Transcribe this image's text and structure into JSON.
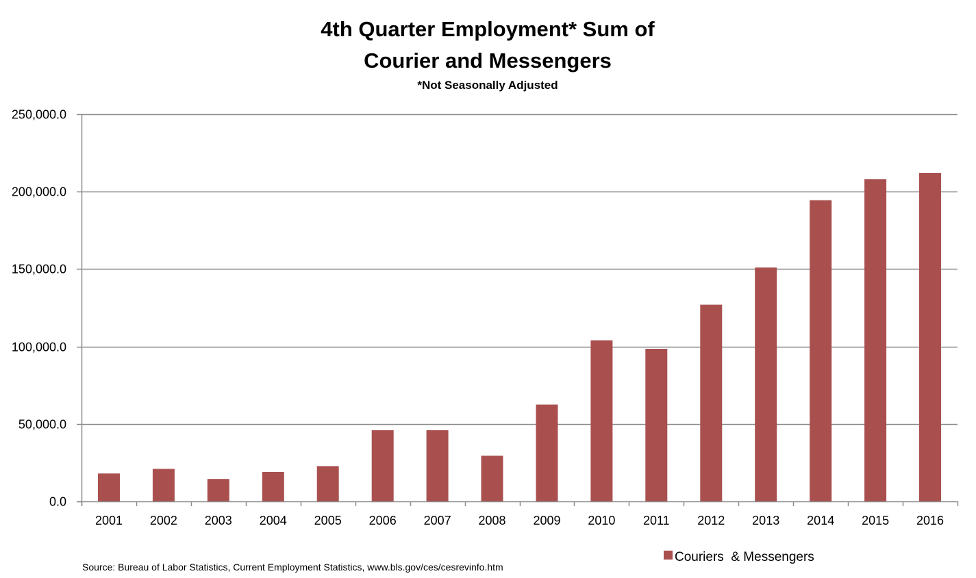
{
  "chart_data": {
    "type": "bar",
    "title_lines": [
      "4th Quarter Employment* Sum of",
      "Courier and Messengers"
    ],
    "subtitle": "*Not Seasonally Adjusted",
    "xlabel": "",
    "ylabel": "",
    "categories": [
      "2001",
      "2002",
      "2003",
      "2004",
      "2005",
      "2006",
      "2007",
      "2008",
      "2009",
      "2010",
      "2011",
      "2012",
      "2013",
      "2014",
      "2015",
      "2016"
    ],
    "series": [
      {
        "name": "Couriers  & Messengers",
        "color": "#A9504F",
        "values": [
          18000,
          21000,
          14500,
          19000,
          22800,
          46000,
          46000,
          29500,
          62500,
          104000,
          98500,
          127000,
          151000,
          194500,
          208000,
          212000
        ]
      }
    ],
    "ylim": [
      0,
      250000
    ],
    "yticks": [
      0,
      50000,
      100000,
      150000,
      200000,
      250000
    ],
    "ytick_labels": [
      "0.0",
      "50,000.0",
      "100,000.0",
      "150,000.0",
      "200,000.0",
      "250,000.0"
    ],
    "grid": true,
    "legend_position": "bottom-right",
    "source": "Source: Bureau of Labor Statistics, Current Employment Statistics, www.bls.gov/ces/cesrevinfo.htm",
    "colors": {
      "gridline": "#8C8C8C",
      "axis": "#8C8C8C",
      "bar": "#A9504F",
      "text": "#000000"
    }
  }
}
